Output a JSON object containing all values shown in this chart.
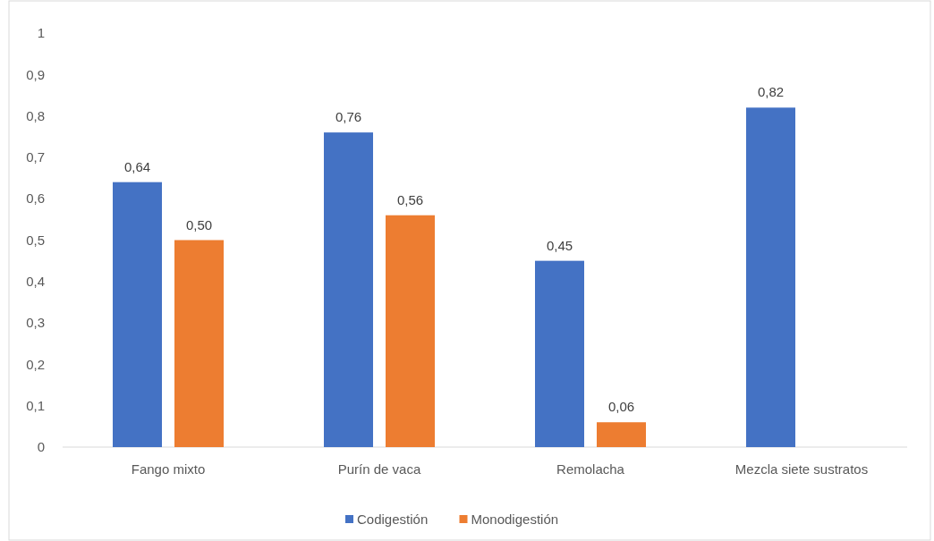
{
  "chart_data": {
    "type": "bar",
    "categories": [
      "Fango mixto",
      "Purín de vaca",
      "Remolacha",
      "Mezcla siete sustratos"
    ],
    "series": [
      {
        "name": "Codigestión",
        "color": "#4472c4",
        "values": [
          0.64,
          0.76,
          0.45,
          0.82
        ],
        "value_labels": [
          "0,64",
          "0,76",
          "0,45",
          "0,82"
        ]
      },
      {
        "name": "Monodigestión",
        "color": "#ed7d31",
        "values": [
          0.5,
          0.56,
          0.06,
          null
        ],
        "value_labels": [
          "0,50",
          "0,56",
          "0,06",
          null
        ]
      }
    ],
    "ylim": [
      0,
      1
    ],
    "yticks": [
      {
        "value": 0,
        "label": "0"
      },
      {
        "value": 0.1,
        "label": "0,1"
      },
      {
        "value": 0.2,
        "label": "0,2"
      },
      {
        "value": 0.3,
        "label": "0,3"
      },
      {
        "value": 0.4,
        "label": "0,4"
      },
      {
        "value": 0.5,
        "label": "0,5"
      },
      {
        "value": 0.6,
        "label": "0,6"
      },
      {
        "value": 0.7,
        "label": "0,7"
      },
      {
        "value": 0.8,
        "label": "0,8"
      },
      {
        "value": 0.9,
        "label": "0,9"
      },
      {
        "value": 1,
        "label": "1"
      }
    ],
    "grid": false,
    "legend": "bottom"
  }
}
